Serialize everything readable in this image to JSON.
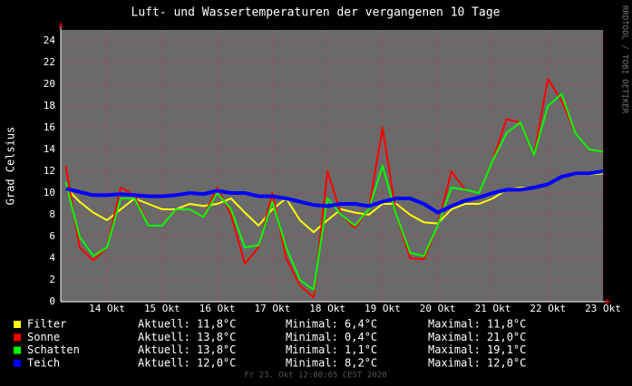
{
  "chart_data": {
    "type": "line",
    "title": "Luft- und Wassertemperaturen der vergangenen 10 Tage",
    "y_label": "Grad Celsius",
    "watermark": "RRDTOOL / TOBI OETIKER",
    "footer": "Fr 23. Okt 12:00:05 CEST 2020",
    "grid": true,
    "xlim": [
      13.16,
      23
    ],
    "xticks": [
      {
        "value": 14,
        "label": "14 Okt"
      },
      {
        "value": 15,
        "label": "15 Okt"
      },
      {
        "value": 16,
        "label": "16 Okt"
      },
      {
        "value": 17,
        "label": "17 Okt"
      },
      {
        "value": 18,
        "label": "18 Okt"
      },
      {
        "value": 19,
        "label": "19 Okt"
      },
      {
        "value": 20,
        "label": "20 Okt"
      },
      {
        "value": 21,
        "label": "21 Okt"
      },
      {
        "value": 22,
        "label": "22 Okt"
      },
      {
        "value": 23,
        "label": "23 Okt"
      }
    ],
    "ylim": [
      0,
      25
    ],
    "yticks": [
      0,
      2,
      4,
      6,
      8,
      10,
      12,
      14,
      16,
      18,
      20,
      22,
      24
    ],
    "x": [
      13.25,
      13.5,
      13.75,
      14,
      14.25,
      14.5,
      14.75,
      15,
      15.25,
      15.5,
      15.75,
      16,
      16.25,
      16.5,
      16.75,
      17,
      17.25,
      17.5,
      17.75,
      18,
      18.25,
      18.5,
      18.75,
      19,
      19.25,
      19.5,
      19.75,
      20,
      20.25,
      20.5,
      20.75,
      21,
      21.25,
      21.5,
      21.75,
      22,
      22.25,
      22.5,
      22.75,
      23
    ],
    "series": [
      {
        "name": "Filter",
        "color": "#ffff00",
        "stats": [
          "Aktuell: 11,8°C",
          "Minimal: 6,4°C",
          "Maximal: 11,8°C"
        ],
        "values": [
          10.5,
          9.2,
          8.2,
          7.5,
          8.5,
          9.5,
          9,
          8.5,
          8.5,
          9,
          8.8,
          9,
          9.5,
          8.2,
          7,
          8.5,
          9.5,
          7.5,
          6.4,
          7.5,
          8.5,
          8.2,
          8,
          9,
          9,
          8,
          7.3,
          7.2,
          8.5,
          9,
          9,
          9.5,
          10.3,
          10.5,
          10.5,
          10.8,
          11.5,
          11.7,
          11.7,
          11.8
        ]
      },
      {
        "name": "Sonne",
        "color": "#ff0000",
        "stats": [
          "Aktuell: 13,8°C",
          "Minimal: 0,4°C",
          "Maximal: 21,0°C"
        ],
        "values": [
          12.5,
          5,
          3.8,
          5,
          10.5,
          9.8,
          7,
          7,
          8.5,
          8.5,
          7.8,
          10.5,
          8,
          3.5,
          5,
          10,
          4,
          1.5,
          0.4,
          12,
          8,
          6.8,
          8.5,
          16,
          8,
          4,
          3.9,
          7,
          12,
          10.3,
          10,
          13,
          16.8,
          16.5,
          13.5,
          20.5,
          18.5,
          15.5,
          14,
          13.8
        ]
      },
      {
        "name": "Schatten",
        "color": "#00ff00",
        "stats": [
          "Aktuell: 13,8°C",
          "Minimal: 1,1°C",
          "Maximal: 19,1°C"
        ],
        "values": [
          11,
          6,
          4.2,
          5,
          9.5,
          9.5,
          7,
          7,
          8.5,
          8.5,
          7.8,
          10,
          8.5,
          5,
          5.2,
          9.2,
          5,
          2,
          1.1,
          9.5,
          8,
          7,
          8.5,
          12.5,
          8,
          4.5,
          4.2,
          7,
          10.5,
          10.3,
          10,
          13,
          15.5,
          16.5,
          13.5,
          18,
          19.1,
          15.5,
          14,
          13.8
        ]
      },
      {
        "name": "Teich",
        "color": "#0000ff",
        "stats": [
          "Aktuell: 12,0°C",
          "Minimal: 8,2°C",
          "Maximal: 12,0°C"
        ],
        "values": [
          10.4,
          10.1,
          9.8,
          9.8,
          9.9,
          9.8,
          9.7,
          9.7,
          9.8,
          10,
          9.9,
          10.2,
          10,
          10,
          9.7,
          9.7,
          9.5,
          9.2,
          8.9,
          8.8,
          9,
          9,
          8.8,
          9.2,
          9.5,
          9.5,
          9,
          8.2,
          8.8,
          9.3,
          9.6,
          10,
          10.3,
          10.3,
          10.5,
          10.8,
          11.5,
          11.8,
          11.8,
          12
        ]
      }
    ]
  }
}
